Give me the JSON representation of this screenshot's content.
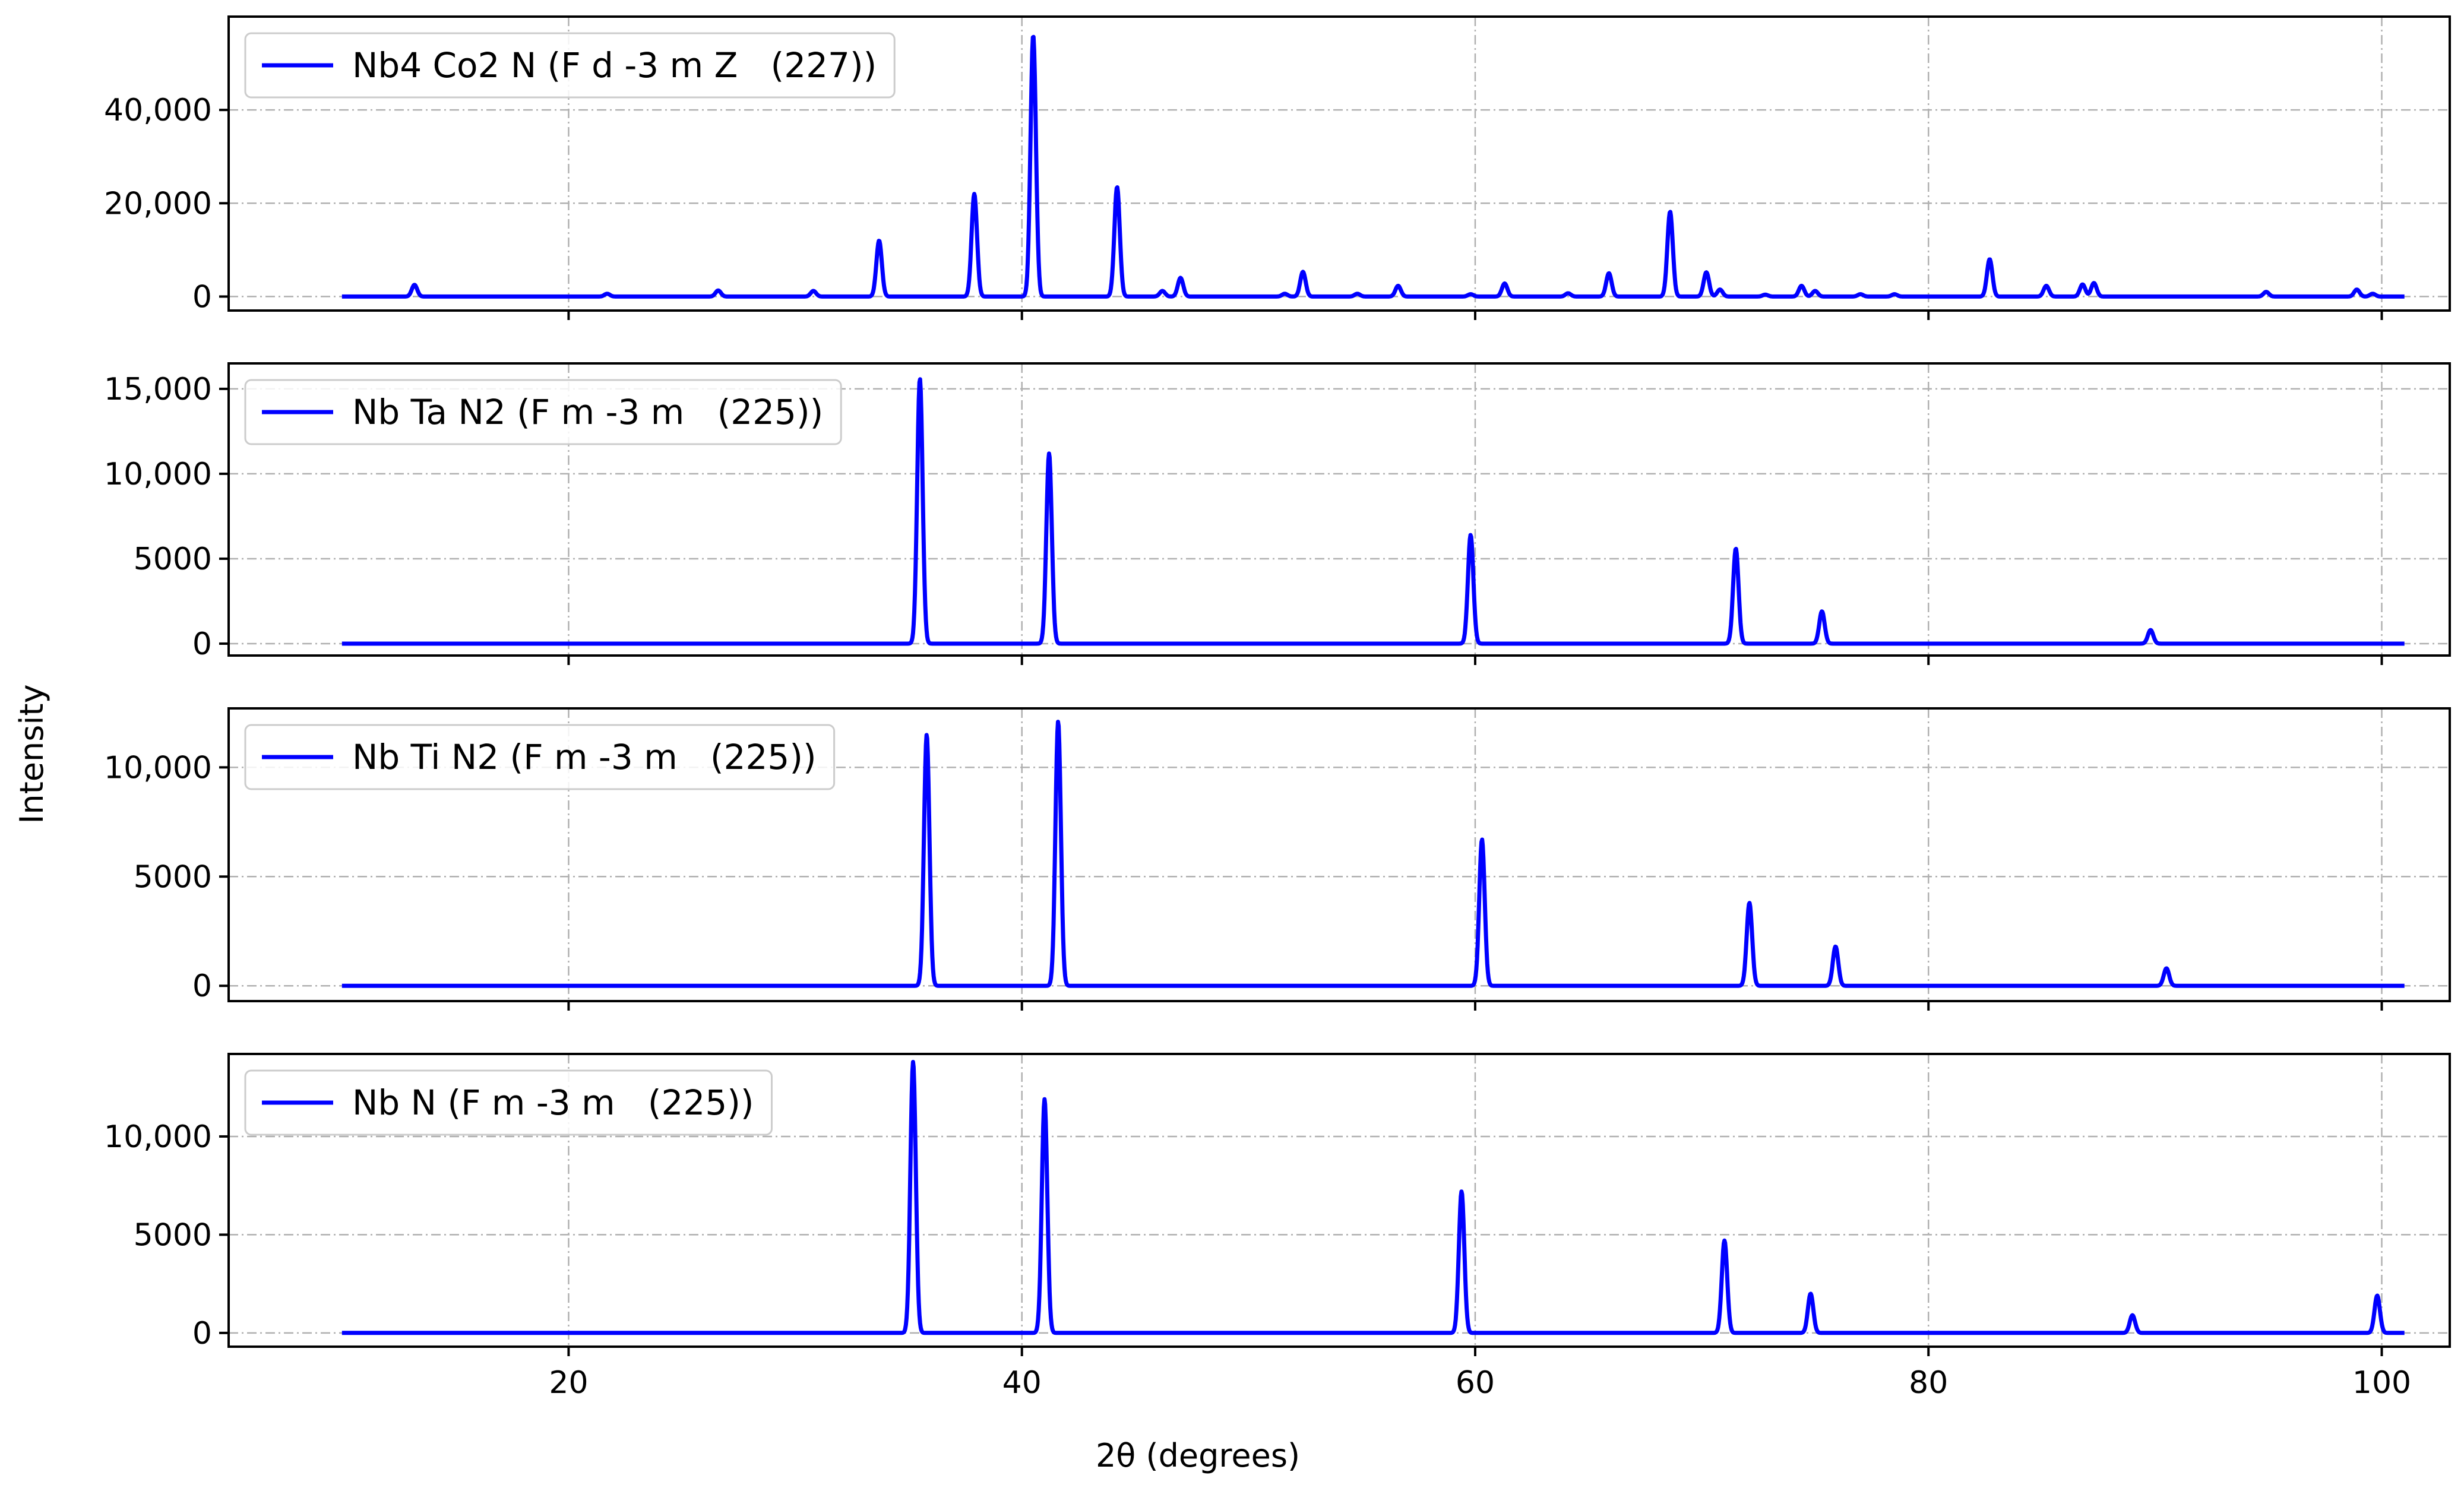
{
  "chart_data": {
    "type": "line",
    "xlabel": "2θ (degrees)",
    "ylabel": "Intensity",
    "xlim": [
      5,
      103
    ],
    "x_ticks": [
      20,
      40,
      60,
      80,
      100
    ],
    "x_tick_labels": [
      "20",
      "40",
      "60",
      "80",
      "100"
    ],
    "x_range": [
      10,
      101
    ],
    "grid": true,
    "legend_placement": "upper-left",
    "line_color": "#0000ff",
    "panels": [
      {
        "name": "Nb4 Co2 N (F d -3 m Z   (227))",
        "ylim": [
          -3000,
          60000
        ],
        "y_ticks": [
          0,
          20000,
          40000
        ],
        "y_tick_labels": [
          "0",
          "20,000",
          "40,000"
        ],
        "peaks": [
          [
            13.2,
            2500
          ],
          [
            21.7,
            600
          ],
          [
            26.6,
            1300
          ],
          [
            30.8,
            1200
          ],
          [
            33.7,
            12000
          ],
          [
            37.9,
            22000
          ],
          [
            40.5,
            56000
          ],
          [
            44.2,
            23500
          ],
          [
            46.2,
            1200
          ],
          [
            47.0,
            4000
          ],
          [
            51.6,
            600
          ],
          [
            52.4,
            5300
          ],
          [
            54.8,
            600
          ],
          [
            56.6,
            2300
          ],
          [
            59.8,
            500
          ],
          [
            61.3,
            2800
          ],
          [
            64.1,
            700
          ],
          [
            65.9,
            5000
          ],
          [
            68.6,
            18200
          ],
          [
            70.2,
            5200
          ],
          [
            70.8,
            1500
          ],
          [
            72.8,
            400
          ],
          [
            74.4,
            2300
          ],
          [
            75.0,
            1200
          ],
          [
            77.0,
            500
          ],
          [
            78.5,
            500
          ],
          [
            82.7,
            8000
          ],
          [
            85.2,
            2300
          ],
          [
            86.8,
            2600
          ],
          [
            87.3,
            2900
          ],
          [
            94.9,
            1000
          ],
          [
            98.9,
            1500
          ],
          [
            99.6,
            600
          ]
        ]
      },
      {
        "name": "Nb Ta N2 (F m -3 m   (225))",
        "ylim": [
          -700,
          16500
        ],
        "y_ticks": [
          0,
          5000,
          10000,
          15000
        ],
        "y_tick_labels": [
          "0",
          "5000",
          "10,000",
          "15,000"
        ],
        "peaks": [
          [
            35.5,
            15600
          ],
          [
            41.2,
            11200
          ],
          [
            59.8,
            6400
          ],
          [
            71.5,
            5600
          ],
          [
            75.3,
            1900
          ],
          [
            89.8,
            800
          ]
        ]
      },
      {
        "name": "Nb Ti N2 (F m -3 m   (225))",
        "ylim": [
          -700,
          12700
        ],
        "y_ticks": [
          0,
          5000,
          10000
        ],
        "y_tick_labels": [
          "0",
          "5000",
          "10,000"
        ],
        "peaks": [
          [
            35.8,
            11500
          ],
          [
            41.6,
            12100
          ],
          [
            60.3,
            6700
          ],
          [
            72.1,
            3800
          ],
          [
            75.9,
            1800
          ],
          [
            90.5,
            800
          ]
        ]
      },
      {
        "name": "Nb N (F m -3 m   (225))",
        "ylim": [
          -700,
          14200
        ],
        "y_ticks": [
          0,
          5000,
          10000
        ],
        "y_tick_labels": [
          "0",
          "5000",
          "10,000"
        ],
        "peaks": [
          [
            35.2,
            13800
          ],
          [
            41.0,
            11900
          ],
          [
            59.4,
            7200
          ],
          [
            71.0,
            4700
          ],
          [
            74.8,
            2000
          ],
          [
            89.0,
            900
          ],
          [
            99.8,
            1900
          ]
        ]
      }
    ]
  }
}
